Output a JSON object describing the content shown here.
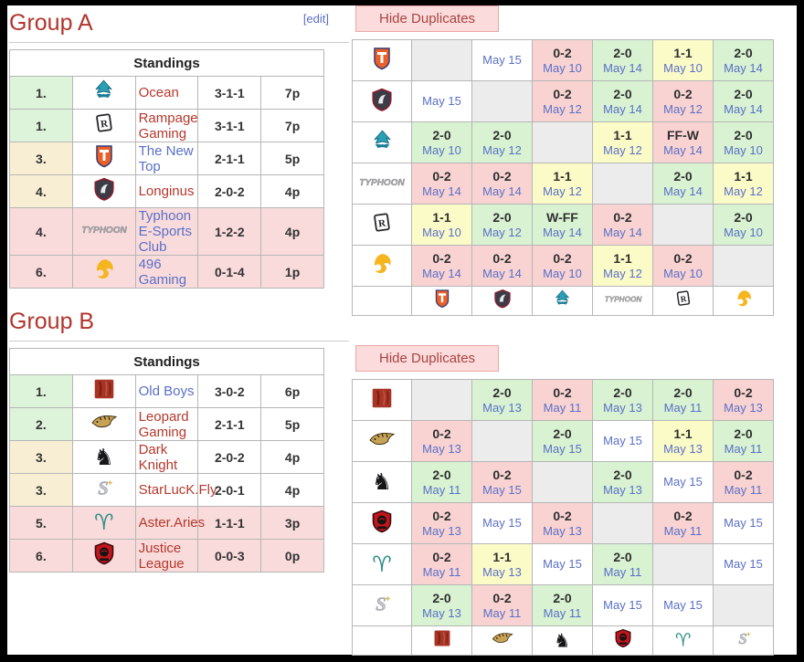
{
  "colors": {
    "heading_red": "#b2342c",
    "link_blue": "#5a6fc8",
    "link_red": "#b5382c",
    "win_bg": "#d8f2d2",
    "draw_bg": "#fbfbc8",
    "loss_bg": "#f8d3d2",
    "self_bg": "#ececec",
    "rank_up_bg": "#ddf3da",
    "rank_mid_bg": "#f7eed3",
    "rank_down_bg": "#f9dbdb",
    "button_bg": "#fbdbdb"
  },
  "groups": [
    {
      "heading": "Group A",
      "edit_label": "[edit]",
      "standings_header": "Standings",
      "standings": [
        {
          "rank": "1.",
          "icon": "ocean",
          "team": "Ocean",
          "record": "3-1-1",
          "points": "7p",
          "rank_tier": "up",
          "row_down": false,
          "link_color": "red"
        },
        {
          "rank": "1.",
          "icon": "rampage",
          "team": "Rampage Gaming",
          "record": "3-1-1",
          "points": "7p",
          "rank_tier": "up",
          "row_down": false,
          "link_color": "red"
        },
        {
          "rank": "3.",
          "icon": "tnt",
          "team": "The New Top",
          "record": "2-1-1",
          "points": "5p",
          "rank_tier": "mid",
          "row_down": false,
          "link_color": "blue"
        },
        {
          "rank": "4.",
          "icon": "longinus",
          "team": "Longinus",
          "record": "2-0-2",
          "points": "4p",
          "rank_tier": "mid",
          "row_down": false,
          "link_color": "red"
        },
        {
          "rank": "4.",
          "icon": "typhoon",
          "team": "Typhoon E-Sports Club",
          "record": "1-2-2",
          "points": "4p",
          "rank_tier": "down",
          "row_down": true,
          "link_color": "blue"
        },
        {
          "rank": "6.",
          "icon": "g496",
          "team": "496 Gaming",
          "record": "0-1-4",
          "points": "1p",
          "rank_tier": "down",
          "row_down": true,
          "link_color": "blue"
        }
      ],
      "hide_duplicates_label": "Hide Duplicates",
      "cross_order": [
        "tnt",
        "longinus",
        "ocean",
        "typhoon",
        "rampage",
        "g496"
      ],
      "cross_rows": [
        [
          null,
          {
            "date": "May 15"
          },
          {
            "score": "0-2",
            "date": "May 10",
            "r": "loss"
          },
          {
            "score": "2-0",
            "date": "May 14",
            "r": "win"
          },
          {
            "score": "1-1",
            "date": "May 10",
            "r": "draw"
          },
          {
            "score": "2-0",
            "date": "May 14",
            "r": "win"
          }
        ],
        [
          {
            "date": "May 15"
          },
          null,
          {
            "score": "0-2",
            "date": "May 12",
            "r": "loss"
          },
          {
            "score": "2-0",
            "date": "May 14",
            "r": "win"
          },
          {
            "score": "0-2",
            "date": "May 12",
            "r": "loss"
          },
          {
            "score": "2-0",
            "date": "May 14",
            "r": "win"
          }
        ],
        [
          {
            "score": "2-0",
            "date": "May 10",
            "r": "win"
          },
          {
            "score": "2-0",
            "date": "May 12",
            "r": "win"
          },
          null,
          {
            "score": "1-1",
            "date": "May 12",
            "r": "draw"
          },
          {
            "score": "FF-W",
            "date": "May 14",
            "r": "loss"
          },
          {
            "score": "2-0",
            "date": "May 10",
            "r": "win"
          }
        ],
        [
          {
            "score": "0-2",
            "date": "May 14",
            "r": "loss"
          },
          {
            "score": "0-2",
            "date": "May 14",
            "r": "loss"
          },
          {
            "score": "1-1",
            "date": "May 12",
            "r": "draw"
          },
          null,
          {
            "score": "2-0",
            "date": "May 14",
            "r": "win"
          },
          {
            "score": "1-1",
            "date": "May 12",
            "r": "draw"
          }
        ],
        [
          {
            "score": "1-1",
            "date": "May 10",
            "r": "draw"
          },
          {
            "score": "2-0",
            "date": "May 12",
            "r": "win"
          },
          {
            "score": "W-FF",
            "date": "May 14",
            "r": "win"
          },
          {
            "score": "0-2",
            "date": "May 14",
            "r": "loss"
          },
          null,
          {
            "score": "2-0",
            "date": "May 10",
            "r": "win"
          }
        ],
        [
          {
            "score": "0-2",
            "date": "May 14",
            "r": "loss"
          },
          {
            "score": "0-2",
            "date": "May 14",
            "r": "loss"
          },
          {
            "score": "0-2",
            "date": "May 10",
            "r": "loss"
          },
          {
            "score": "1-1",
            "date": "May 12",
            "r": "draw"
          },
          {
            "score": "0-2",
            "date": "May 10",
            "r": "loss"
          },
          null
        ]
      ]
    },
    {
      "heading": "Group B",
      "edit_label": null,
      "standings_header": "Standings",
      "standings": [
        {
          "rank": "1.",
          "icon": "oldboys",
          "team": "Old Boys",
          "record": "3-0-2",
          "points": "6p",
          "rank_tier": "up",
          "row_down": false,
          "link_color": "blue"
        },
        {
          "rank": "2.",
          "icon": "leopard",
          "team": "Leopard Gaming",
          "record": "2-1-1",
          "points": "5p",
          "rank_tier": "up",
          "row_down": false,
          "link_color": "red"
        },
        {
          "rank": "3.",
          "icon": "darkknight",
          "team": "Dark Knight",
          "record": "2-0-2",
          "points": "4p",
          "rank_tier": "mid",
          "row_down": false,
          "link_color": "red"
        },
        {
          "rank": "3.",
          "icon": "starluck",
          "team": "StarLucK.Fly",
          "record": "2-0-1",
          "points": "4p",
          "rank_tier": "mid",
          "row_down": false,
          "link_color": "red"
        },
        {
          "rank": "5.",
          "icon": "aster",
          "team": "Aster.Aries",
          "record": "1-1-1",
          "points": "3p",
          "rank_tier": "down",
          "row_down": true,
          "link_color": "red"
        },
        {
          "rank": "6.",
          "icon": "justice",
          "team": "Justice League",
          "record": "0-0-3",
          "points": "0p",
          "rank_tier": "down",
          "row_down": true,
          "link_color": "red"
        }
      ],
      "hide_duplicates_label": "Hide Duplicates",
      "cross_order": [
        "oldboys",
        "leopard",
        "darkknight",
        "justice",
        "aster",
        "starluck"
      ],
      "cross_rows": [
        [
          null,
          {
            "score": "2-0",
            "date": "May 13",
            "r": "win"
          },
          {
            "score": "0-2",
            "date": "May 11",
            "r": "loss"
          },
          {
            "score": "2-0",
            "date": "May 13",
            "r": "win"
          },
          {
            "score": "2-0",
            "date": "May 11",
            "r": "win"
          },
          {
            "score": "0-2",
            "date": "May 13",
            "r": "loss"
          }
        ],
        [
          {
            "score": "0-2",
            "date": "May 13",
            "r": "loss"
          },
          null,
          {
            "score": "2-0",
            "date": "May 15",
            "r": "win"
          },
          {
            "date": "May 15"
          },
          {
            "score": "1-1",
            "date": "May 13",
            "r": "draw"
          },
          {
            "score": "2-0",
            "date": "May 11",
            "r": "win"
          }
        ],
        [
          {
            "score": "2-0",
            "date": "May 11",
            "r": "win"
          },
          {
            "score": "0-2",
            "date": "May 15",
            "r": "loss"
          },
          null,
          {
            "score": "2-0",
            "date": "May 13",
            "r": "win"
          },
          {
            "date": "May 15"
          },
          {
            "score": "0-2",
            "date": "May 11",
            "r": "loss"
          }
        ],
        [
          {
            "score": "0-2",
            "date": "May 13",
            "r": "loss"
          },
          {
            "date": "May 15"
          },
          {
            "score": "0-2",
            "date": "May 13",
            "r": "loss"
          },
          null,
          {
            "score": "0-2",
            "date": "May 11",
            "r": "loss"
          },
          {
            "date": "May 15"
          }
        ],
        [
          {
            "score": "0-2",
            "date": "May 11",
            "r": "loss"
          },
          {
            "score": "1-1",
            "date": "May 13",
            "r": "draw"
          },
          {
            "date": "May 15"
          },
          {
            "score": "2-0",
            "date": "May 11",
            "r": "win"
          },
          null,
          {
            "date": "May 15"
          }
        ],
        [
          {
            "score": "2-0",
            "date": "May 13",
            "r": "win"
          },
          {
            "score": "0-2",
            "date": "May 11",
            "r": "loss"
          },
          {
            "score": "2-0",
            "date": "May 11",
            "r": "win"
          },
          {
            "date": "May 15"
          },
          {
            "date": "May 15"
          },
          null
        ]
      ]
    }
  ],
  "teams": {
    "ocean": "Ocean",
    "rampage": "Rampage Gaming",
    "tnt": "The New Top",
    "longinus": "Longinus",
    "typhoon": "Typhoon E-Sports Club",
    "g496": "496 Gaming",
    "oldboys": "Old Boys",
    "leopard": "Leopard Gaming",
    "darkknight": "Dark Knight",
    "justice": "Justice League",
    "aster": "Aster.Aries",
    "starluck": "StarLucK.Fly"
  }
}
